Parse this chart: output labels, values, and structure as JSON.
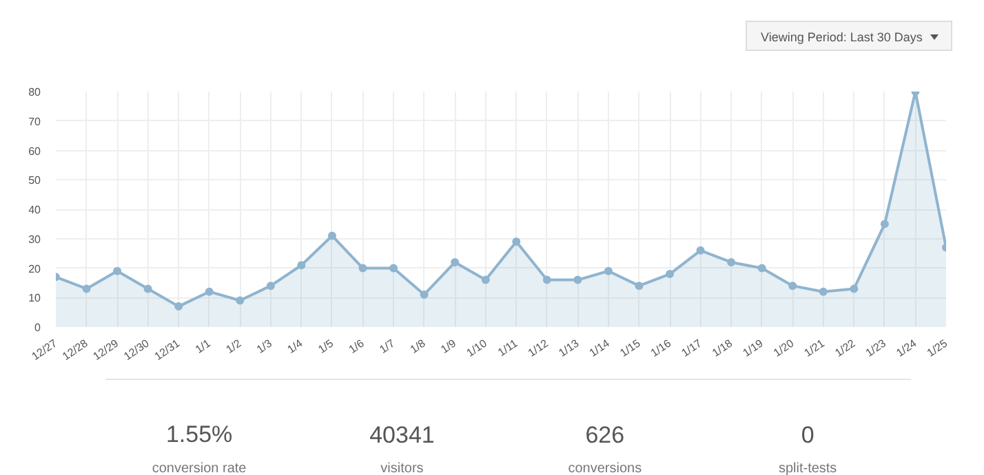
{
  "chart_data": [
    {
      "type": "area",
      "categories": [
        "12/27",
        "12/28",
        "12/29",
        "12/30",
        "12/31",
        "1/1",
        "1/2",
        "1/3",
        "1/4",
        "1/5",
        "1/6",
        "1/7",
        "1/8",
        "1/9",
        "1/10",
        "1/11",
        "1/12",
        "1/13",
        "1/14",
        "1/15",
        "1/16",
        "1/17",
        "1/18",
        "1/19",
        "1/20",
        "1/21",
        "1/22",
        "1/23",
        "1/24",
        "1/25"
      ],
      "series": [
        {
          "color": "#8fb4cf",
          "values": [
            17,
            13,
            19,
            13,
            7,
            12,
            9,
            14,
            21,
            31,
            20,
            20,
            11,
            22,
            16,
            29,
            16,
            16,
            19,
            14,
            18,
            26,
            22,
            20,
            14,
            12,
            13,
            35,
            80,
            27
          ]
        }
      ],
      "ylim": [
        0,
        80
      ],
      "yticks": [
        0,
        10,
        20,
        30,
        40,
        50,
        60,
        70,
        80
      ],
      "grid": true,
      "marker": "circle",
      "annotations": [
        "Viewing Period: Last 30 Days"
      ]
    },
    {
      "type": "other",
      "annotations": [
        "1.55%",
        "conversion rate",
        "40341",
        "visitors",
        "626",
        "conversions",
        "0",
        "split-tests"
      ]
    }
  ]
}
